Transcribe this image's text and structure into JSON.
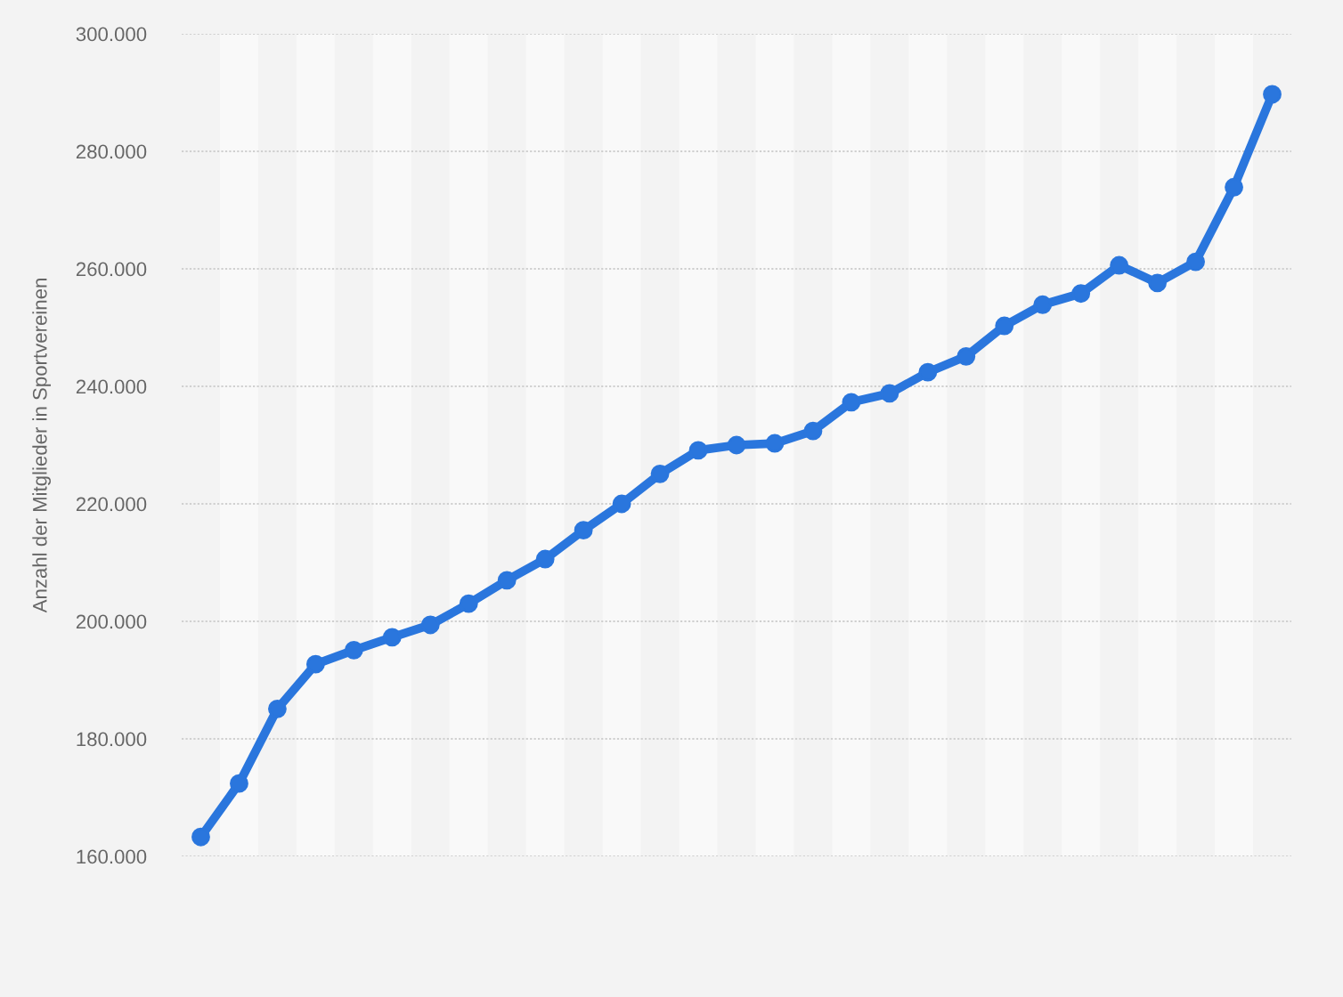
{
  "chart_data": {
    "type": "line",
    "ylabel": "Anzahl der Mitglieder in Sportvereinen",
    "categories": [
      null,
      null,
      null,
      null,
      null,
      null,
      null,
      null,
      null,
      null,
      null,
      null,
      null,
      null,
      null,
      null,
      null,
      null,
      null,
      null,
      null,
      null,
      null,
      null,
      null,
      null,
      null,
      null,
      null
    ],
    "series": [
      {
        "color": "#2a76dd",
        "values": [
          163300,
          172400,
          185100,
          192700,
          195100,
          197300,
          199400,
          203000,
          207000,
          210600,
          215500,
          220000,
          225100,
          229100,
          230000,
          230300,
          232400,
          237300,
          238800,
          242400,
          245100,
          250300,
          253900,
          255800,
          260600,
          257600,
          261200,
          273900,
          289700
        ]
      }
    ],
    "ylim": [
      160000,
      300000
    ],
    "yticks": [
      {
        "value": 160000,
        "label": "160.000"
      },
      {
        "value": 180000,
        "label": "180.000"
      },
      {
        "value": 200000,
        "label": "200.000"
      },
      {
        "value": 220000,
        "label": "220.000"
      },
      {
        "value": 240000,
        "label": "240.000"
      },
      {
        "value": 260000,
        "label": "260.000"
      },
      {
        "value": 280000,
        "label": "280.000"
      },
      {
        "value": 300000,
        "label": "300.000"
      }
    ],
    "grid": "y",
    "marker": "circle",
    "line_style": "solid",
    "legend": false
  }
}
